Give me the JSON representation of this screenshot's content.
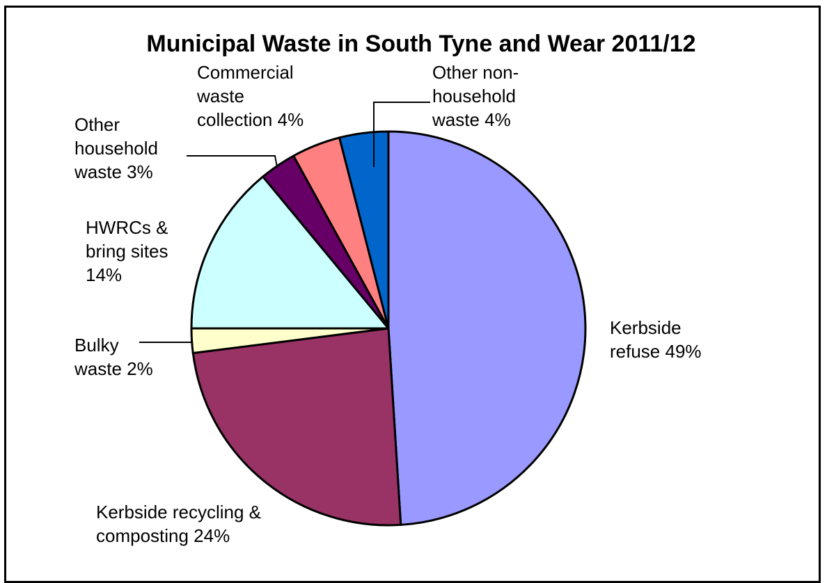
{
  "chart_data": {
    "type": "pie",
    "title": "Municipal Waste in South Tyne and Wear 2011/12",
    "start_angle_deg": 0,
    "direction": "clockwise",
    "slices": [
      {
        "name": "Kerbside refuse",
        "value": 49,
        "color": "#9999FF",
        "label_lines": [
          "Kerbside",
          "refuse 49%"
        ]
      },
      {
        "name": "Kerbside recycling & composting",
        "value": 24,
        "color": "#993366",
        "label_lines": [
          "Kerbside recycling &",
          "composting 24%"
        ]
      },
      {
        "name": "Bulky waste",
        "value": 2,
        "color": "#FFFFCC",
        "label_lines": [
          "Bulky",
          "waste 2%"
        ]
      },
      {
        "name": "HWRCs & bring sites",
        "value": 14,
        "color": "#CCFFFF",
        "label_lines": [
          "HWRCs &",
          "bring sites",
          "14%"
        ]
      },
      {
        "name": "Other household waste",
        "value": 3,
        "color": "#660066",
        "label_lines": [
          "Other",
          "household",
          "waste 3%"
        ]
      },
      {
        "name": "Commercial waste collection",
        "value": 4,
        "color": "#FF8080",
        "label_lines": [
          "Commercial",
          "waste",
          "collection 4%"
        ]
      },
      {
        "name": "Other non-household waste",
        "value": 4,
        "color": "#0066CC",
        "label_lines": [
          "Other non-",
          "household",
          "waste 4%"
        ]
      }
    ]
  }
}
